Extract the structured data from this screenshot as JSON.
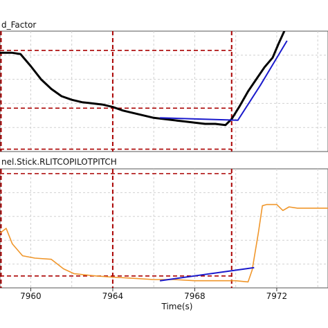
{
  "chart_data": [
    {
      "type": "line",
      "title": "d_Factor",
      "xlim": [
        7958.5,
        7974.5
      ],
      "ylim": [
        0,
        1
      ],
      "grid": true,
      "series": [
        {
          "color": "#000000",
          "x": [
            7958.5,
            7959.1,
            7959.5,
            7960.0,
            7960.5,
            7961.0,
            7961.5,
            7962.0,
            7962.5,
            7963.0,
            7963.5,
            7964.0,
            7964.5,
            7965.0,
            7965.5,
            7966.0,
            7966.5,
            7967.0,
            7967.5,
            7968.0,
            7968.5,
            7969.0,
            7969.5,
            7969.8,
            7970.2,
            7970.6,
            7971.0,
            7971.4,
            7971.8,
            7972.1,
            7972.5
          ],
          "y": [
            0.82,
            0.82,
            0.81,
            0.71,
            0.6,
            0.52,
            0.46,
            0.43,
            0.41,
            0.4,
            0.39,
            0.37,
            0.34,
            0.32,
            0.3,
            0.28,
            0.27,
            0.26,
            0.25,
            0.24,
            0.23,
            0.23,
            0.22,
            0.27,
            0.38,
            0.5,
            0.6,
            0.7,
            0.78,
            0.9,
            1.05
          ]
        },
        {
          "color": "#1a1acc",
          "x": [
            7966.3,
            7970.1,
            7971.2,
            7972.5
          ],
          "y": [
            0.28,
            0.26,
            0.55,
            0.92
          ]
        }
      ],
      "vlines": [
        7958.5,
        7964.0,
        7969.8
      ],
      "hlines": [
        0.84,
        0.36,
        0.02
      ],
      "ref_line_color": "#aa0000"
    },
    {
      "type": "line",
      "title": "nel.Stick.RLITCOPILOTPITCH",
      "xlabel": "Time(s)",
      "xticks": [
        7960,
        7964,
        7968,
        7972
      ],
      "xlim": [
        7958.5,
        7974.5
      ],
      "ylim": [
        0,
        1
      ],
      "grid": true,
      "series": [
        {
          "color": "#f0962a",
          "x": [
            7958.5,
            7958.8,
            7959.1,
            7959.6,
            7960.2,
            7961.0,
            7961.6,
            7962.1,
            7962.6,
            7963.2,
            7964.0,
            7965.0,
            7966.0,
            7967.0,
            7968.0,
            7969.0,
            7970.0,
            7970.6,
            7970.8,
            7971.1,
            7971.3,
            7971.5,
            7972.0,
            7972.3,
            7972.6,
            7973.0,
            7974.5
          ],
          "y": [
            0.46,
            0.5,
            0.37,
            0.27,
            0.25,
            0.24,
            0.16,
            0.12,
            0.11,
            0.1,
            0.09,
            0.08,
            0.07,
            0.07,
            0.06,
            0.06,
            0.06,
            0.05,
            0.15,
            0.46,
            0.69,
            0.7,
            0.7,
            0.65,
            0.68,
            0.67,
            0.67
          ]
        },
        {
          "color": "#1a1acc",
          "x": [
            7966.3,
            7970.9
          ],
          "y": [
            0.06,
            0.17
          ]
        }
      ],
      "vlines": [
        7958.5,
        7964.0,
        7969.8
      ],
      "hlines": [
        0.96,
        0.1
      ],
      "ref_line_color": "#aa0000"
    }
  ]
}
